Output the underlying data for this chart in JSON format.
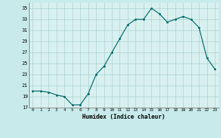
{
  "x": [
    0,
    1,
    2,
    3,
    4,
    5,
    6,
    7,
    8,
    9,
    10,
    11,
    12,
    13,
    14,
    15,
    16,
    17,
    18,
    19,
    20,
    21,
    22,
    23
  ],
  "y": [
    20.0,
    20.0,
    19.8,
    19.3,
    19.0,
    17.5,
    17.5,
    19.5,
    23.0,
    24.5,
    27.0,
    29.5,
    32.0,
    33.0,
    33.0,
    35.0,
    34.0,
    32.5,
    33.0,
    33.5,
    33.0,
    31.5,
    26.0,
    24.0
  ],
  "xlabel": "Humidex (Indice chaleur)",
  "xlim": [
    -0.5,
    23.5
  ],
  "ylim": [
    17,
    36
  ],
  "yticks": [
    17,
    19,
    21,
    23,
    25,
    27,
    29,
    31,
    33,
    35
  ],
  "xtick_labels": [
    "0",
    "1",
    "2",
    "3",
    "4",
    "5",
    "6",
    "7",
    "8",
    "9",
    "10",
    "11",
    "12",
    "13",
    "14",
    "15",
    "16",
    "17",
    "18",
    "19",
    "20",
    "21",
    "22",
    "23"
  ],
  "line_color": "#006868",
  "marker_color": "#006868",
  "bg_color": "#c8eaea",
  "grid_color": "#a8cece",
  "plot_bg": "#d8f0f0"
}
